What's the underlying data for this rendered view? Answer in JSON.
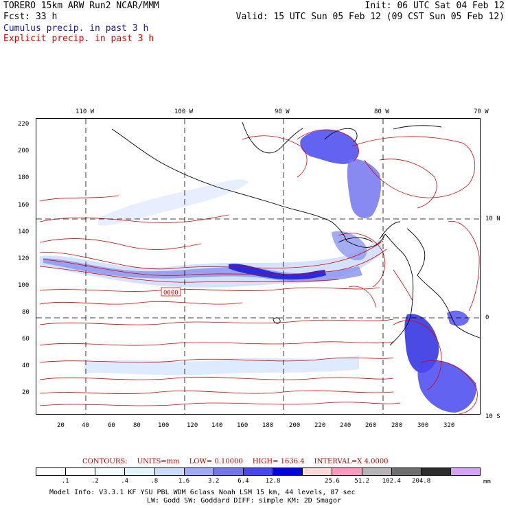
{
  "header": {
    "line1_left": "TORERO  15km ARW   Run2    NCAR/MMM",
    "line1_right": "Init: 06 UTC Sat 04 Feb 12",
    "line2_left": "Fcst:   33 h",
    "line2_right": "Valid: 15 UTC Sun 05 Feb 12 (09 CST Sun 05 Feb 12)",
    "field1": "Cumulus precip. in past 3 h",
    "field2": "Explicit precip. in past 3 h"
  },
  "map": {
    "top_lon_labels": [
      "110 W",
      "100 W",
      "90 W",
      "80 W",
      "70 W"
    ],
    "right_lat_labels": [
      "10 N",
      "0",
      "10 S"
    ],
    "left_y_ticks": [
      "220",
      "200",
      "180",
      "160",
      "140",
      "120",
      "100",
      "80",
      "60",
      "40",
      "20"
    ],
    "bottom_x_ticks": [
      "20",
      "40",
      "60",
      "80",
      "100",
      "120",
      "140",
      "160",
      "180",
      "200",
      "220",
      "240",
      "260",
      "280",
      "300",
      "320"
    ],
    "contour_label": "0000",
    "colors": {
      "explicit_contour": "#e00000",
      "cumulus_light": "#c8d8ff",
      "cumulus_mid": "#8c96f0",
      "cumulus_heavy": "#2a2ae0",
      "coast": "#000000"
    }
  },
  "contours_info": {
    "contours": "CONTOURS:",
    "units": "UNITS=mm",
    "low": "LOW= 0.10000",
    "high": "HIGH=  1636.4",
    "interval": "INTERVAL=X  4.0000"
  },
  "legend": {
    "labels": [
      ".1",
      ".2",
      ".4",
      ".8",
      "1.6",
      "3.2",
      "6.4",
      "12.8",
      "25.6",
      "51.2",
      "102.4",
      "204.8"
    ],
    "unit": "mm",
    "colors": [
      "#ffffff",
      "#ffffff",
      "#f0fcff",
      "#e0f6ff",
      "#c8dcff",
      "#a0aaf8",
      "#7474f0",
      "#4848f0",
      "#0000e6",
      "#ffd8d8",
      "#ff98c0",
      "#b4b4b4",
      "#6e6e6e",
      "#2c2c2c",
      "#d4a0f8"
    ]
  },
  "model_info": {
    "line1": "Model Info: V3.3.1    KF     YSU PBL   WDM 6class   Noah LSM  15 km,    44 levels,    87 sec",
    "line2": "LW: Godd SW: Goddard DIFF: simple KM: 2D Smagor"
  }
}
